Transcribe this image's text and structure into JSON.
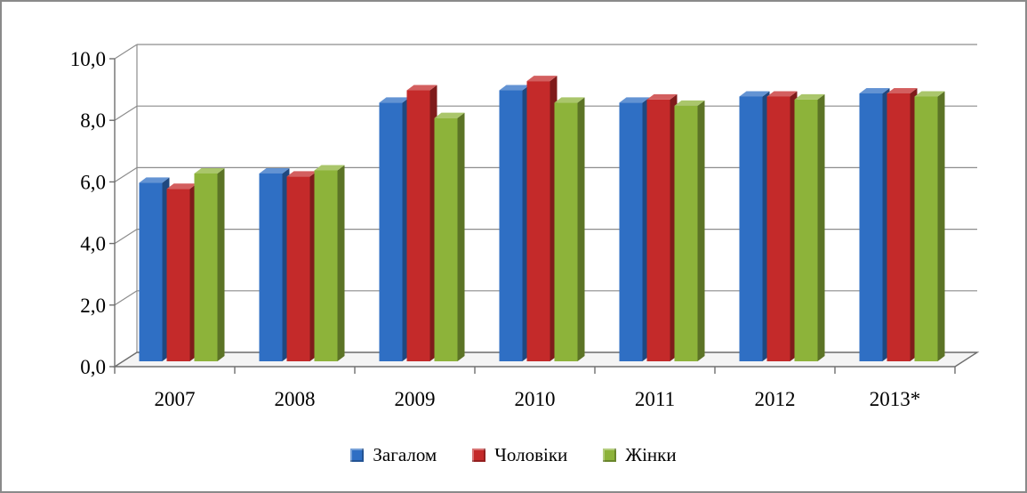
{
  "chart_data": {
    "type": "bar",
    "style": "3d-clustered-column",
    "title": "",
    "xlabel": "",
    "ylabel": "",
    "categories": [
      "2007",
      "2008",
      "2009",
      "2010",
      "2011",
      "2012",
      "2013*"
    ],
    "ylim": [
      0,
      10
    ],
    "yticks": [
      "0,0",
      "2,0",
      "4,0",
      "6,0",
      "8,0",
      "10,0"
    ],
    "grid": true,
    "legend_position": "bottom",
    "series": [
      {
        "name": "Загалом",
        "color": "#2f6fc4",
        "values": [
          5.8,
          6.1,
          8.4,
          8.8,
          8.4,
          8.6,
          8.7
        ]
      },
      {
        "name": "Чоловіки",
        "color": "#c42a2a",
        "values": [
          5.6,
          6.0,
          8.8,
          9.1,
          8.5,
          8.6,
          8.7
        ]
      },
      {
        "name": "Жінки",
        "color": "#8db33a",
        "values": [
          6.1,
          6.2,
          7.9,
          8.4,
          8.3,
          8.5,
          8.6
        ]
      }
    ]
  }
}
